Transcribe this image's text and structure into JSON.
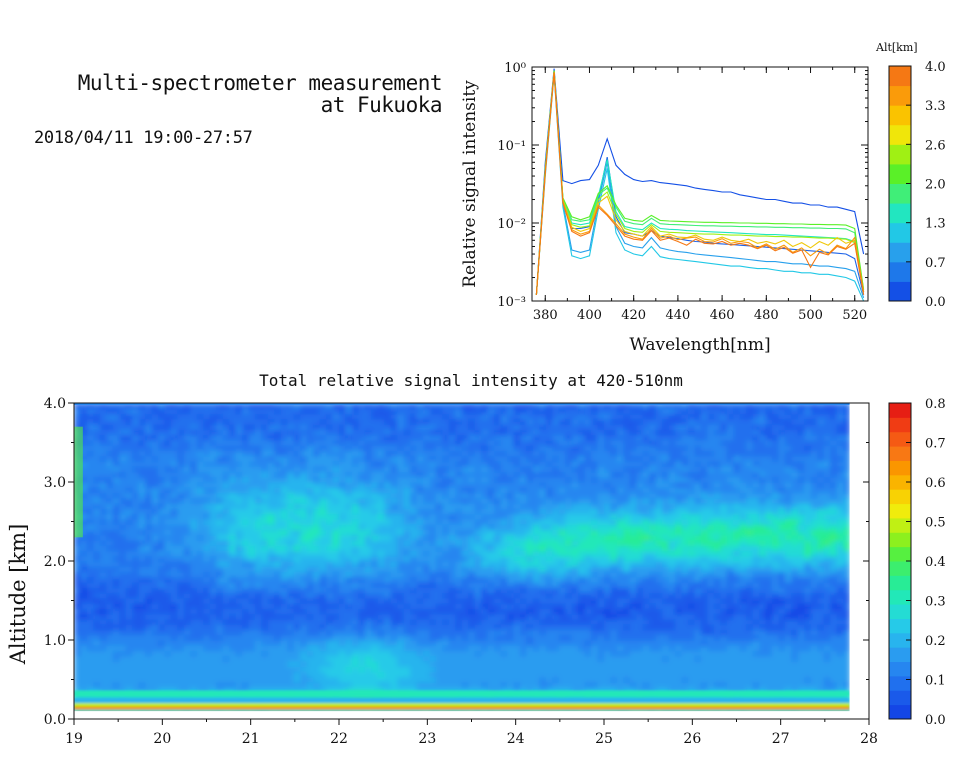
{
  "header": {
    "title_line1": "Multi-spectrometer measurement",
    "title_line2": "at Fukuoka",
    "datetime": "2018/04/11 19:00-27:57"
  },
  "chart_data": [
    {
      "type": "line",
      "xlabel": "Wavelength[nm]",
      "ylabel": "Relative signal intensity",
      "yscale": "log",
      "xlim": [
        374,
        526
      ],
      "ylim": [
        0.001,
        1
      ],
      "x_ticks": [
        "380",
        "400",
        "420",
        "440",
        "460",
        "480",
        "500",
        "520"
      ],
      "y_ticks": [
        "10⁻³",
        "10⁻²",
        "10⁻¹",
        "10⁰"
      ],
      "colorbar": {
        "title": "Alt[km]",
        "tick_labels": [
          "0.0",
          "0.7",
          "1.3",
          "2.0",
          "2.6",
          "3.3",
          "4.0"
        ],
        "levels": [
          "#1450e6",
          "#1e78ea",
          "#28a0ec",
          "#22c8e6",
          "#22e6c0",
          "#40ee78",
          "#5af028",
          "#a0f014",
          "#f0e60a",
          "#fac300",
          "#fa9b0a",
          "#f57814"
        ]
      },
      "x": [
        376,
        380,
        384,
        388,
        392,
        396,
        400,
        404,
        408,
        412,
        416,
        420,
        424,
        428,
        432,
        436,
        440,
        444,
        448,
        452,
        456,
        460,
        464,
        468,
        472,
        476,
        480,
        484,
        488,
        492,
        496,
        500,
        504,
        508,
        512,
        516,
        520,
        524
      ],
      "series": [
        {
          "color": "#1450e6",
          "values": [
            0.0012,
            0.06,
            0.95,
            0.035,
            0.032,
            0.035,
            0.036,
            0.055,
            0.12,
            0.055,
            0.042,
            0.036,
            0.034,
            0.035,
            0.033,
            0.032,
            0.031,
            0.03,
            0.028,
            0.027,
            0.026,
            0.025,
            0.025,
            0.023,
            0.022,
            0.021,
            0.02,
            0.02,
            0.019,
            0.018,
            0.018,
            0.017,
            0.017,
            0.016,
            0.016,
            0.015,
            0.014,
            0.004
          ]
        },
        {
          "color": "#1e64e8",
          "values": [
            0.0012,
            0.05,
            0.9,
            0.02,
            0.0085,
            0.0085,
            0.009,
            0.02,
            0.07,
            0.012,
            0.0075,
            0.0072,
            0.0068,
            0.008,
            0.0068,
            0.0065,
            0.0063,
            0.006,
            0.0058,
            0.0057,
            0.0055,
            0.0054,
            0.0053,
            0.0052,
            0.0051,
            0.005,
            0.0049,
            0.0048,
            0.0047,
            0.0046,
            0.0045,
            0.0044,
            0.0043,
            0.0042,
            0.0041,
            0.004,
            0.0035,
            0.0012
          ]
        },
        {
          "color": "#28a0ec",
          "values": [
            0.0012,
            0.045,
            0.85,
            0.018,
            0.0045,
            0.0042,
            0.0045,
            0.018,
            0.06,
            0.009,
            0.0055,
            0.005,
            0.0048,
            0.0065,
            0.0048,
            0.0045,
            0.0043,
            0.0042,
            0.004,
            0.0039,
            0.0038,
            0.0037,
            0.0036,
            0.0035,
            0.0034,
            0.0033,
            0.0032,
            0.0032,
            0.0031,
            0.003,
            0.003,
            0.0029,
            0.0028,
            0.0028,
            0.0027,
            0.0026,
            0.0024,
            0.0011
          ]
        },
        {
          "color": "#22c8e6",
          "values": [
            0.0012,
            0.04,
            0.8,
            0.016,
            0.0038,
            0.0035,
            0.0038,
            0.015,
            0.05,
            0.0075,
            0.0045,
            0.004,
            0.0038,
            0.005,
            0.0037,
            0.0035,
            0.0034,
            0.0033,
            0.0032,
            0.0031,
            0.003,
            0.0029,
            0.0028,
            0.0028,
            0.0027,
            0.0026,
            0.0026,
            0.0025,
            0.0024,
            0.0024,
            0.0023,
            0.0023,
            0.0022,
            0.0022,
            0.0021,
            0.002,
            0.0018,
            0.001
          ]
        },
        {
          "color": "#22e6c0",
          "values": [
            0.0012,
            0.05,
            0.9,
            0.02,
            0.01,
            0.0095,
            0.01,
            0.022,
            0.065,
            0.014,
            0.009,
            0.0085,
            0.0082,
            0.01,
            0.0085,
            0.0083,
            0.0082,
            0.008,
            0.0079,
            0.0078,
            0.0077,
            0.0076,
            0.0075,
            0.0074,
            0.0073,
            0.0072,
            0.0071,
            0.0071,
            0.007,
            0.0069,
            0.0068,
            0.0067,
            0.0066,
            0.0065,
            0.0064,
            0.0063,
            0.0058,
            0.0013
          ]
        },
        {
          "color": "#40ee78",
          "values": [
            0.0012,
            0.05,
            0.9,
            0.021,
            0.011,
            0.0105,
            0.011,
            0.023,
            0.028,
            0.016,
            0.0105,
            0.0098,
            0.0095,
            0.0115,
            0.0098,
            0.0096,
            0.0095,
            0.0094,
            0.0093,
            0.0092,
            0.0092,
            0.0091,
            0.0091,
            0.009,
            0.009,
            0.0089,
            0.0089,
            0.0088,
            0.0088,
            0.0087,
            0.0087,
            0.0086,
            0.0086,
            0.0085,
            0.0085,
            0.0084,
            0.0075,
            0.0014
          ]
        },
        {
          "color": "#5af028",
          "values": [
            0.0012,
            0.05,
            0.9,
            0.021,
            0.012,
            0.011,
            0.012,
            0.024,
            0.03,
            0.017,
            0.0115,
            0.0108,
            0.0105,
            0.0125,
            0.0108,
            0.0106,
            0.0105,
            0.0104,
            0.0103,
            0.0102,
            0.0102,
            0.0101,
            0.0101,
            0.01,
            0.01,
            0.0099,
            0.0099,
            0.0098,
            0.0098,
            0.0097,
            0.0097,
            0.0096,
            0.0096,
            0.0095,
            0.0095,
            0.0094,
            0.0085,
            0.0014
          ]
        },
        {
          "color": "#a0f014",
          "values": [
            0.0012,
            0.048,
            0.88,
            0.02,
            0.0095,
            0.0088,
            0.0092,
            0.02,
            0.025,
            0.013,
            0.0085,
            0.0078,
            0.0076,
            0.0095,
            0.0078,
            0.0076,
            0.0075,
            0.0074,
            0.0073,
            0.0072,
            0.0072,
            0.0071,
            0.007,
            0.007,
            0.0069,
            0.0068,
            0.0068,
            0.0067,
            0.0067,
            0.0066,
            0.0066,
            0.0065,
            0.0064,
            0.0064,
            0.0063,
            0.0062,
            0.0056,
            0.0013
          ]
        },
        {
          "color": "#f0c80a",
          "values": [
            0.0012,
            0.045,
            0.86,
            0.019,
            0.0088,
            0.0078,
            0.0085,
            0.018,
            0.022,
            0.011,
            0.0078,
            0.0072,
            0.0068,
            0.009,
            0.0068,
            0.0072,
            0.0066,
            0.0065,
            0.007,
            0.0062,
            0.006,
            0.0066,
            0.006,
            0.0058,
            0.0062,
            0.0055,
            0.0058,
            0.0054,
            0.006,
            0.005,
            0.0056,
            0.0048,
            0.0058,
            0.0052,
            0.0065,
            0.0055,
            0.006,
            0.0013
          ]
        },
        {
          "color": "#fa9b0a",
          "values": [
            0.0012,
            0.045,
            0.86,
            0.019,
            0.0082,
            0.0072,
            0.0078,
            0.017,
            0.013,
            0.0098,
            0.0072,
            0.0066,
            0.0062,
            0.0085,
            0.0064,
            0.0068,
            0.0061,
            0.0064,
            0.0066,
            0.0058,
            0.0057,
            0.0063,
            0.0055,
            0.0058,
            0.0056,
            0.0048,
            0.0054,
            0.0046,
            0.0052,
            0.0042,
            0.0048,
            0.0038,
            0.0046,
            0.004,
            0.0052,
            0.0047,
            0.0065,
            0.0013
          ]
        },
        {
          "color": "#f57814",
          "values": [
            0.0012,
            0.044,
            0.85,
            0.018,
            0.0078,
            0.0068,
            0.0075,
            0.016,
            0.0125,
            0.0092,
            0.0068,
            0.0062,
            0.006,
            0.008,
            0.006,
            0.0064,
            0.0058,
            0.0052,
            0.0062,
            0.0055,
            0.0054,
            0.0058,
            0.0052,
            0.0055,
            0.0052,
            0.0047,
            0.0052,
            0.0044,
            0.0049,
            0.0041,
            0.0045,
            0.0027,
            0.0042,
            0.0039,
            0.005,
            0.0046,
            0.0055,
            0.0012
          ]
        }
      ]
    },
    {
      "type": "heatmap",
      "title": "Total relative signal intensity at 420-510nm",
      "xlabel": "",
      "ylabel": "Altitude [km]",
      "xlim": [
        19,
        28
      ],
      "ylim": [
        0,
        4
      ],
      "x_ticks": [
        "19",
        "20",
        "21",
        "22",
        "23",
        "24",
        "25",
        "26",
        "27",
        "28"
      ],
      "y_ticks": [
        "0.0",
        "1.0",
        "2.0",
        "3.0",
        "4.0"
      ],
      "colorbar": {
        "tick_labels": [
          "0.0",
          "0.1",
          "0.2",
          "0.3",
          "0.4",
          "0.5",
          "0.6",
          "0.7",
          "0.8"
        ],
        "levels": [
          "#1446e6",
          "#1a5aea",
          "#2070ee",
          "#2686f0",
          "#2a9cf0",
          "#28b4ee",
          "#26cae8",
          "#24dcd4",
          "#22e8b8",
          "#28ec96",
          "#3cee6e",
          "#56f040",
          "#8cf01e",
          "#c0f014",
          "#f0ec0c",
          "#f8d204",
          "#fab400",
          "#fa9600",
          "#f87814",
          "#f55a14",
          "#f03c14",
          "#e61e14"
        ]
      },
      "time_axis": [
        19.0,
        19.5,
        20.0,
        20.5,
        21.0,
        21.5,
        22.0,
        22.5,
        23.0,
        23.5,
        24.0,
        24.5,
        25.0,
        25.5,
        26.0,
        26.5,
        27.0,
        27.5,
        27.95
      ],
      "altitude_axis": [
        0.0,
        0.1,
        0.2,
        0.3,
        0.4,
        0.5,
        0.6,
        0.7,
        0.8,
        0.9,
        1.0,
        1.2,
        1.4,
        1.6,
        1.8,
        2.0,
        2.2,
        2.4,
        2.6,
        2.8,
        3.0,
        3.2,
        3.4,
        3.6,
        3.8,
        4.0
      ],
      "summary": {
        "near_surface_0.15-0.35km": 0.35,
        "boundary_layer_0.4-1.0km_19-21.5h": 0.18,
        "boundary_layer_0.4-1.0km_22-22.8h": 0.26,
        "clean_layer_1.0-1.7km": 0.08,
        "aerosol_layer_1.8-3.0km_20.5-22.5h": 0.27,
        "aerosol_layer_1.8-2.6km_24-27.9h": 0.32,
        "free_troposphere_3.0-4.0km": 0.14
      }
    }
  ]
}
